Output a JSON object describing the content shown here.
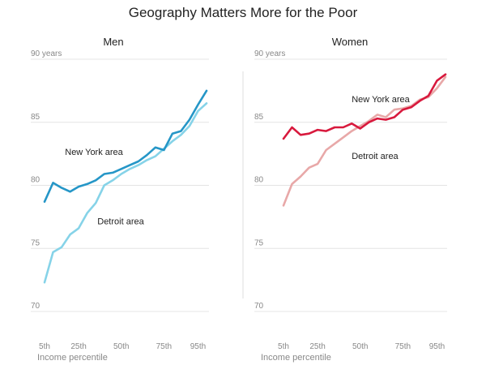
{
  "title": "Geography Matters More for the Poor",
  "x_axis_label": "Income percentile",
  "colors": {
    "men_ny": "#2596c7",
    "men_detroit": "#86d3e8",
    "women_ny": "#d8193d",
    "women_detroit": "#e8a8a8",
    "grid": "#e4e4e4"
  },
  "chart_data": [
    {
      "type": "line",
      "title": "Men",
      "xlabel": "Income percentile",
      "ylabel": "",
      "xlim": [
        1,
        100
      ],
      "ylim": [
        70,
        90
      ],
      "y_ticks": [
        {
          "value": 90,
          "label": "90 years"
        },
        {
          "value": 85,
          "label": "85"
        },
        {
          "value": 80,
          "label": "80"
        },
        {
          "value": 75,
          "label": "75"
        },
        {
          "value": 70,
          "label": "70"
        }
      ],
      "x_ticks": [
        {
          "value": 5,
          "label": "5th"
        },
        {
          "value": 25,
          "label": "25th"
        },
        {
          "value": 50,
          "label": "50th"
        },
        {
          "value": 75,
          "label": "75th"
        },
        {
          "value": 95,
          "label": "95th"
        }
      ],
      "grid": true,
      "x": [
        5,
        10,
        15,
        20,
        25,
        30,
        35,
        40,
        45,
        50,
        55,
        60,
        65,
        70,
        75,
        80,
        85,
        90,
        95,
        100
      ],
      "series": [
        {
          "name": "New York area",
          "color": "#2596c7",
          "label_x": 17,
          "label_y": 82.4,
          "values": [
            78.7,
            80.2,
            79.8,
            79.5,
            79.9,
            80.1,
            80.4,
            80.9,
            81.0,
            81.3,
            81.6,
            81.9,
            82.4,
            83.0,
            82.8,
            84.1,
            84.3,
            85.2,
            86.4,
            87.5
          ]
        },
        {
          "name": "Detroit area",
          "color": "#86d3e8",
          "label_x": 36,
          "label_y": 76.9,
          "values": [
            72.3,
            74.7,
            75.1,
            76.1,
            76.6,
            77.8,
            78.6,
            80.0,
            80.4,
            80.9,
            81.3,
            81.6,
            82.0,
            82.3,
            82.9,
            83.5,
            84.0,
            84.7,
            85.9,
            86.5
          ]
        }
      ]
    },
    {
      "type": "line",
      "title": "Women",
      "xlabel": "Income percentile",
      "ylabel": "",
      "xlim": [
        1,
        100
      ],
      "ylim": [
        70,
        90
      ],
      "y_ticks": [
        {
          "value": 90,
          "label": "90 years"
        },
        {
          "value": 85,
          "label": "85"
        },
        {
          "value": 80,
          "label": "80"
        },
        {
          "value": 75,
          "label": "75"
        },
        {
          "value": 70,
          "label": "70"
        }
      ],
      "x_ticks": [
        {
          "value": 5,
          "label": "5th"
        },
        {
          "value": 25,
          "label": "25th"
        },
        {
          "value": 50,
          "label": "50th"
        },
        {
          "value": 75,
          "label": "75th"
        },
        {
          "value": 95,
          "label": "95th"
        }
      ],
      "grid": true,
      "x": [
        5,
        10,
        15,
        20,
        25,
        30,
        35,
        40,
        45,
        50,
        55,
        60,
        65,
        70,
        75,
        80,
        85,
        90,
        95,
        100
      ],
      "series": [
        {
          "name": "New York area",
          "color": "#d8193d",
          "label_x": 45,
          "label_y": 86.6,
          "values": [
            83.7,
            84.6,
            84.0,
            84.1,
            84.4,
            84.3,
            84.6,
            84.6,
            84.9,
            84.5,
            85.0,
            85.3,
            85.2,
            85.4,
            86.0,
            86.2,
            86.7,
            87.1,
            88.3,
            88.8
          ]
        },
        {
          "name": "Detroit area",
          "color": "#e8a8a8",
          "label_x": 45,
          "label_y": 82.1,
          "values": [
            78.4,
            80.1,
            80.7,
            81.4,
            81.7,
            82.8,
            83.3,
            83.8,
            84.3,
            84.7,
            85.1,
            85.6,
            85.4,
            86.0,
            86.1,
            86.3,
            86.8,
            87.0,
            87.7,
            88.6
          ]
        }
      ]
    }
  ]
}
